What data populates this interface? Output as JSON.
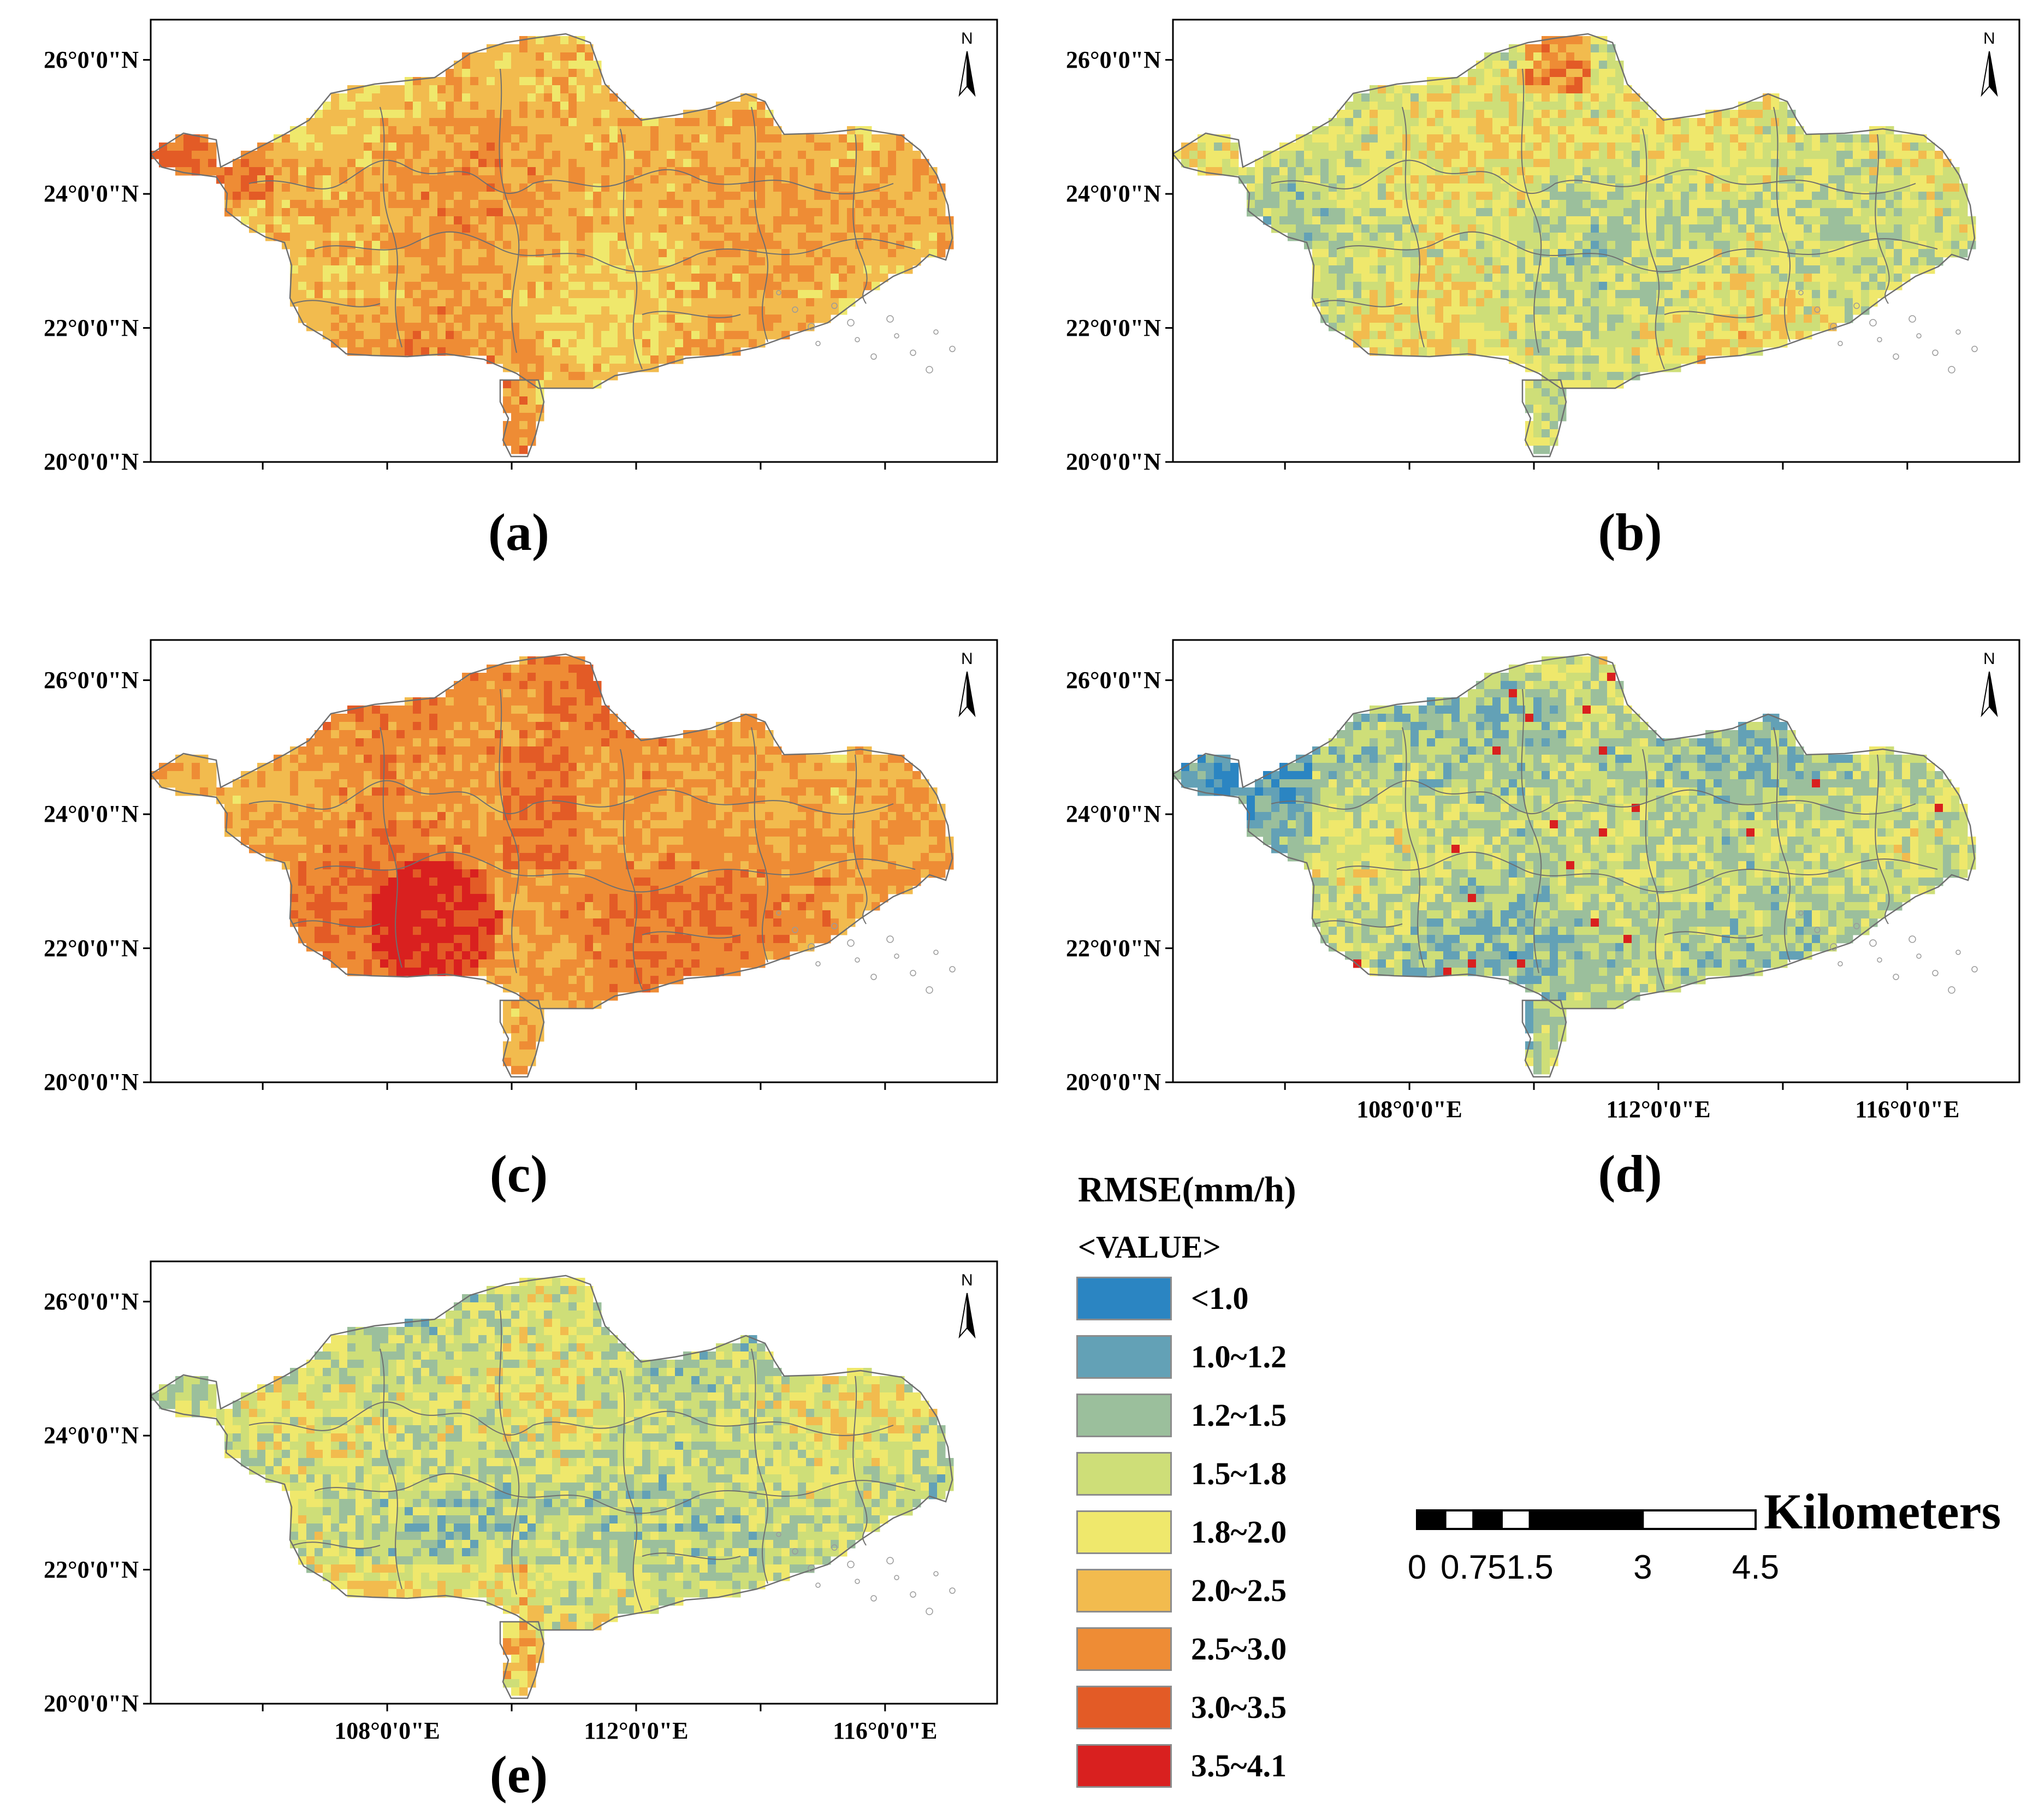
{
  "colors": {
    "classes": [
      "#2b85c2",
      "#63a1b6",
      "#9bbf9c",
      "#cede78",
      "#efe86c",
      "#f2bb4e",
      "#ee8c35",
      "#e35b26",
      "#d9201f"
    ],
    "boundary": "#6f6f6f",
    "frame": "#000000"
  },
  "panels": [
    {
      "label": "(a)",
      "pattern": "high"
    },
    {
      "label": "(b)",
      "pattern": "mid"
    },
    {
      "label": "(c)",
      "pattern": "veryhigh"
    },
    {
      "label": "(d)",
      "pattern": "low"
    },
    {
      "label": "(e)",
      "pattern": "lowmid"
    }
  ],
  "axes": {
    "y_labels": [
      "26°0'0\"N",
      "24°0'0\"N",
      "22°0'0\"N",
      "20°0'0\"N"
    ],
    "y_values": [
      26,
      24,
      22,
      20
    ],
    "x_labels": [
      "108°0'0\"E",
      "112°0'0\"E",
      "116°0'0\"E"
    ],
    "x_values": [
      108,
      112,
      116
    ]
  },
  "north_arrow": {
    "letter": "N",
    "icon": "north-arrow-icon"
  },
  "legend": {
    "title": "RMSE(mm/h)",
    "subtitle": "<VALUE>",
    "items": [
      {
        "label": "<1.0",
        "color": "#2b85c2"
      },
      {
        "label": "1.0~1.2",
        "color": "#63a1b6"
      },
      {
        "label": "1.2~1.5",
        "color": "#9bbf9c"
      },
      {
        "label": "1.5~1.8",
        "color": "#cede78"
      },
      {
        "label": "1.8~2.0",
        "color": "#efe86c"
      },
      {
        "label": "2.0~2.5",
        "color": "#f2bb4e"
      },
      {
        "label": "2.5~3.0",
        "color": "#ee8c35"
      },
      {
        "label": "3.0~3.5",
        "color": "#e35b26"
      },
      {
        "label": "3.5~4.1",
        "color": "#d9201f"
      }
    ]
  },
  "scale_bar": {
    "unit": "Kilometers",
    "ticks": [
      "0",
      "0.75",
      "1.5",
      "3",
      "4.5"
    ],
    "tick_values": [
      0,
      0.75,
      1.5,
      3,
      4.5
    ]
  }
}
